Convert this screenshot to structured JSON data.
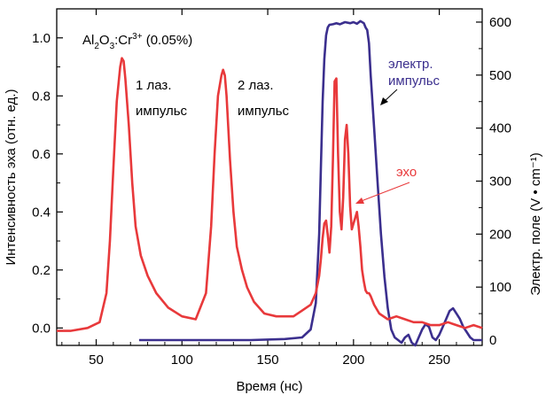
{
  "chart_data": {
    "type": "line",
    "title": "",
    "xlabel": "Время (нс)",
    "ylabel_left": "Интенсивность эха (отн. ед.)",
    "ylabel_right": "Электр. поле (V • cm⁻¹)",
    "xlim": [
      27,
      275
    ],
    "ylim_left": [
      -0.06,
      1.1
    ],
    "ylim_right": [
      -10,
      625
    ],
    "x_ticks": [
      50,
      100,
      150,
      200,
      250
    ],
    "y_left_ticks": [
      "0.0",
      "0.2",
      "0.4",
      "0.6",
      "0.8",
      "1.0"
    ],
    "y_left_tick_values": [
      0,
      0.2,
      0.4,
      0.6,
      0.8,
      1.0
    ],
    "y_right_ticks": [
      "0",
      "100",
      "200",
      "300",
      "400",
      "500",
      "600"
    ],
    "y_right_tick_values": [
      0,
      100,
      200,
      300,
      400,
      500,
      600
    ],
    "colors": {
      "echo": "#e8393b",
      "field": "#3b2f8e",
      "axis": "#000000"
    },
    "series": [
      {
        "name": "Интенсивность эха",
        "axis": "left",
        "color": "#e8393b",
        "x": [
          27,
          35,
          45,
          52,
          56,
          58,
          60,
          62,
          64,
          65,
          66,
          67,
          69,
          71,
          73,
          76,
          80,
          85,
          92,
          100,
          108,
          114,
          117,
          119,
          121,
          123,
          124,
          125,
          126,
          128,
          130,
          132,
          135,
          138,
          142,
          148,
          155,
          160,
          165,
          170,
          175,
          178,
          180,
          181,
          182,
          183,
          184,
          185,
          186,
          187,
          188,
          189,
          190,
          191,
          192,
          193,
          194,
          195,
          196,
          197,
          198,
          199,
          200,
          201,
          202,
          203,
          204,
          205,
          206,
          207,
          208,
          209,
          210,
          212,
          215,
          220,
          225,
          230,
          235,
          240,
          245,
          250,
          255,
          260,
          265,
          270,
          275
        ],
        "y": [
          -0.01,
          -0.01,
          0.0,
          0.02,
          0.12,
          0.3,
          0.55,
          0.78,
          0.9,
          0.93,
          0.92,
          0.86,
          0.7,
          0.5,
          0.35,
          0.25,
          0.18,
          0.12,
          0.07,
          0.04,
          0.03,
          0.12,
          0.35,
          0.6,
          0.8,
          0.87,
          0.89,
          0.87,
          0.8,
          0.58,
          0.4,
          0.28,
          0.2,
          0.14,
          0.09,
          0.05,
          0.04,
          0.04,
          0.04,
          0.06,
          0.08,
          0.12,
          0.18,
          0.24,
          0.31,
          0.36,
          0.37,
          0.32,
          0.26,
          0.35,
          0.58,
          0.85,
          0.86,
          0.6,
          0.4,
          0.34,
          0.45,
          0.65,
          0.7,
          0.6,
          0.42,
          0.34,
          0.36,
          0.38,
          0.4,
          0.35,
          0.28,
          0.2,
          0.16,
          0.13,
          0.12,
          0.12,
          0.11,
          0.08,
          0.05,
          0.03,
          0.04,
          0.03,
          0.02,
          0.02,
          0.01,
          0.01,
          0.02,
          0.01,
          0.0,
          0.01,
          0.0
        ]
      },
      {
        "name": "Электр. поле",
        "axis": "right",
        "color": "#3b2f8e",
        "x": [
          75,
          100,
          120,
          140,
          160,
          170,
          175,
          178,
          180,
          181,
          182,
          183,
          184,
          185,
          186,
          188,
          190,
          192,
          195,
          198,
          200,
          202,
          204,
          206,
          207,
          208,
          209,
          210,
          212,
          214,
          216,
          218,
          220,
          222,
          224,
          226,
          228,
          230,
          232,
          234,
          236,
          238,
          240,
          242,
          244,
          246,
          248,
          250,
          252,
          254,
          256,
          258,
          260,
          262,
          264,
          266,
          268,
          270,
          275
        ],
        "y": [
          0,
          0,
          0,
          0,
          2,
          5,
          20,
          70,
          200,
          330,
          450,
          530,
          575,
          590,
          595,
          596,
          598,
          596,
          600,
          598,
          600,
          597,
          602,
          598,
          590,
          585,
          560,
          500,
          400,
          300,
          200,
          120,
          60,
          20,
          5,
          0,
          -5,
          5,
          10,
          -5,
          -10,
          5,
          20,
          30,
          25,
          5,
          0,
          10,
          25,
          40,
          55,
          60,
          50,
          40,
          25,
          15,
          5,
          0,
          0
        ]
      }
    ],
    "annotations": {
      "sample": {
        "base1": "Al",
        "sub1": "2",
        "base2": "O",
        "sub2": "3",
        "base3": ":Cr",
        "sup": "3+",
        "tail": " (0.05%)"
      },
      "pulse1": [
        "1 лаз.",
        "импульс"
      ],
      "pulse2": [
        "2 лаз.",
        "импульс"
      ],
      "field": [
        "электр.",
        "импульс"
      ],
      "echo": "эхо"
    }
  }
}
